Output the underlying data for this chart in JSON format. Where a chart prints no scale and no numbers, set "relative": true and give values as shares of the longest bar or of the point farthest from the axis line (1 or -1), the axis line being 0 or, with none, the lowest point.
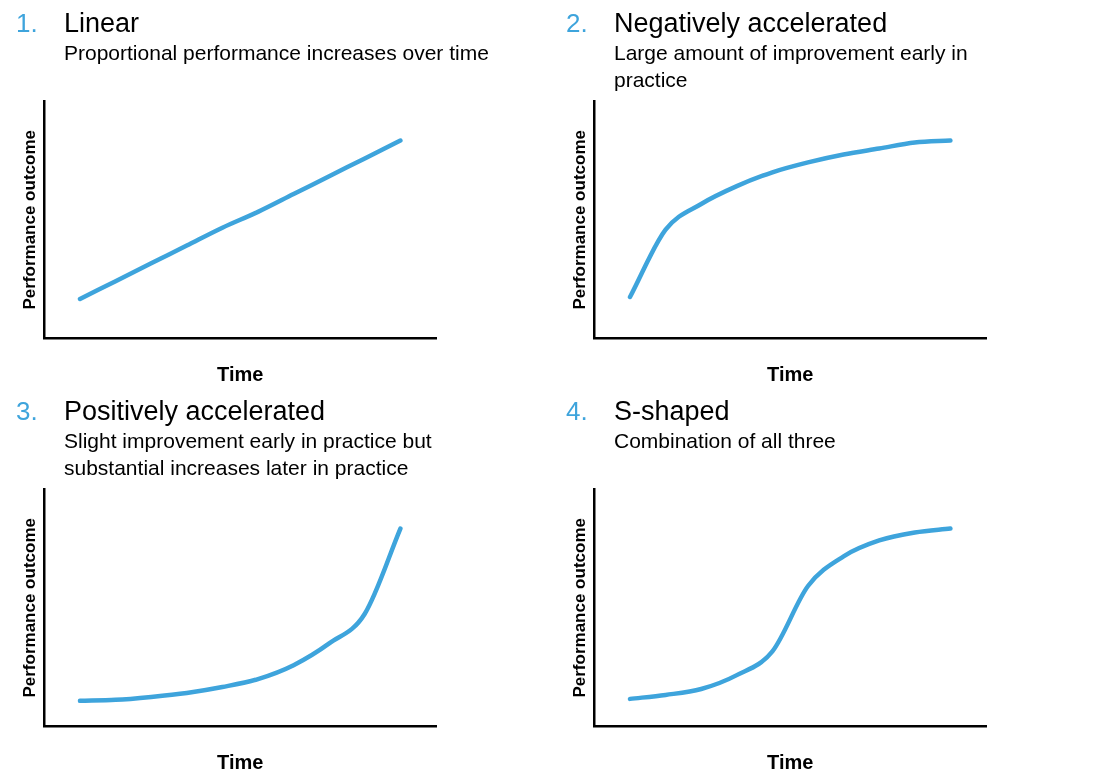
{
  "chart_data": [
    {
      "type": "line",
      "title": "1. Linear",
      "subtitle": "Proportional performance increases over time",
      "xlabel": "Time",
      "ylabel": "Performance outcome",
      "relative": true,
      "grid": false,
      "legend": false,
      "marker": "none",
      "categories": [
        null,
        null,
        null,
        null,
        null,
        null,
        null,
        null,
        null,
        null,
        null,
        null
      ],
      "series": [
        {
          "color": "#3ea4dc",
          "values": [
            null,
            0.2,
            0.29,
            0.38,
            0.47,
            0.56,
            0.64,
            0.73,
            0.82,
            0.91,
            1,
            null
          ]
        }
      ]
    },
    {
      "type": "line",
      "title": "2. Negatively accelerated",
      "subtitle": "Large amount of improvement early in practice",
      "xlabel": "Time",
      "ylabel": "Performance outcome",
      "relative": true,
      "grid": false,
      "legend": false,
      "marker": "none",
      "categories": [
        null,
        null,
        null,
        null,
        null,
        null,
        null,
        null,
        null,
        null,
        null,
        null
      ],
      "series": [
        {
          "color": "#3ea4dc",
          "values": [
            null,
            0.21,
            0.55,
            0.68,
            0.77,
            0.84,
            0.89,
            0.93,
            0.96,
            0.99,
            1,
            null
          ]
        }
      ]
    },
    {
      "type": "line",
      "title": "3. Positively accelerated",
      "subtitle": "Slight improvement early in practice but substantial increases later in practice",
      "xlabel": "Time",
      "ylabel": "Performance outcome",
      "relative": true,
      "grid": false,
      "legend": false,
      "marker": "none",
      "categories": [
        null,
        null,
        null,
        null,
        null,
        null,
        null,
        null,
        null,
        null,
        null,
        null
      ],
      "series": [
        {
          "color": "#3ea4dc",
          "values": [
            null,
            0.13,
            0.135,
            0.15,
            0.17,
            0.2,
            0.24,
            0.31,
            0.42,
            0.57,
            1,
            null
          ]
        }
      ]
    },
    {
      "type": "line",
      "title": "4. S-shaped",
      "subtitle": "Combination of all three",
      "xlabel": "Time",
      "ylabel": "Performance outcome",
      "relative": true,
      "grid": false,
      "legend": false,
      "marker": "none",
      "categories": [
        null,
        null,
        null,
        null,
        null,
        null,
        null,
        null,
        null,
        null,
        null,
        null
      ],
      "series": [
        {
          "color": "#3ea4dc",
          "values": [
            null,
            0.14,
            0.16,
            0.19,
            0.26,
            0.38,
            0.71,
            0.86,
            0.94,
            0.98,
            1,
            null
          ]
        }
      ]
    }
  ]
}
